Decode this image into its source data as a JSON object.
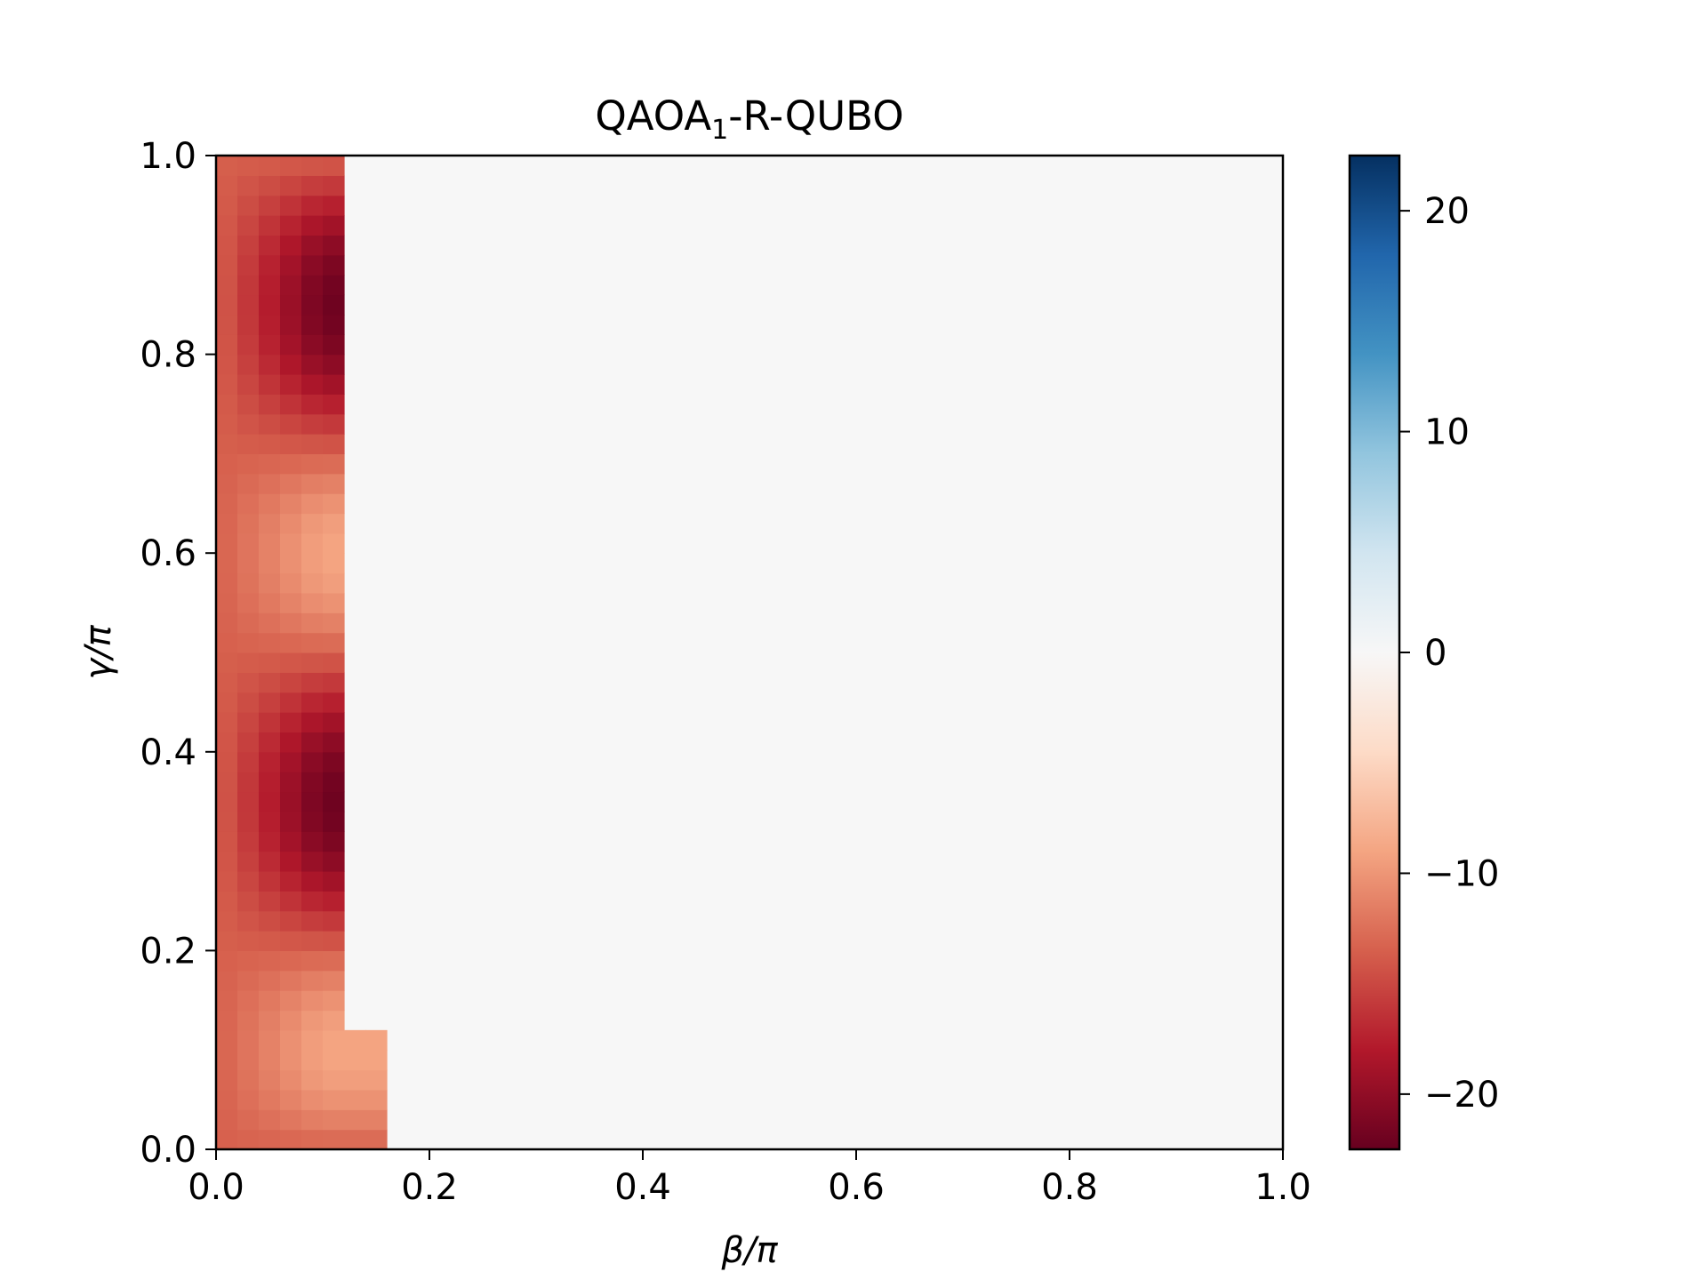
{
  "chart_data": {
    "type": "heatmap",
    "title": "QAOA",
    "title_subscript": "1",
    "title_suffix": "-R-QUBO",
    "xlabel": "β/π",
    "ylabel": "γ/π",
    "xlim": [
      0.0,
      1.0
    ],
    "ylim": [
      0.0,
      1.0
    ],
    "x_ticks": [
      "0.0",
      "0.2",
      "0.4",
      "0.6",
      "0.8",
      "1.0"
    ],
    "y_ticks": [
      "0.0",
      "0.2",
      "0.4",
      "0.6",
      "0.8",
      "1.0"
    ],
    "colormap": "RdBu",
    "colorbar": {
      "range": [
        -22.5,
        22.5
      ],
      "ticks": [
        20,
        10,
        0,
        -10,
        -20
      ],
      "tick_labels": [
        "20",
        "10",
        "0",
        "−10",
        "−20"
      ]
    },
    "grid": {
      "columns": 50,
      "rows": 50,
      "cell_width_beta": 0.02,
      "cell_height_gamma": 0.02,
      "background_value": 0,
      "populated_region": "β from 0.00 to about 0.13 over all γ (extending to about 0.15 for γ below about 0.13); elsewhere the value is approximately 0"
    },
    "features": [
      {
        "kind": "minimum",
        "beta": 0.1,
        "gamma": 0.85,
        "value": -22
      },
      {
        "kind": "minimum",
        "beta": 0.1,
        "gamma": 0.35,
        "value": -21
      },
      {
        "kind": "local-maximum",
        "beta": 0.1,
        "gamma": 0.6,
        "value": -9
      },
      {
        "kind": "local-maximum",
        "beta": 0.1,
        "gamma": 0.1,
        "value": -9
      }
    ]
  }
}
